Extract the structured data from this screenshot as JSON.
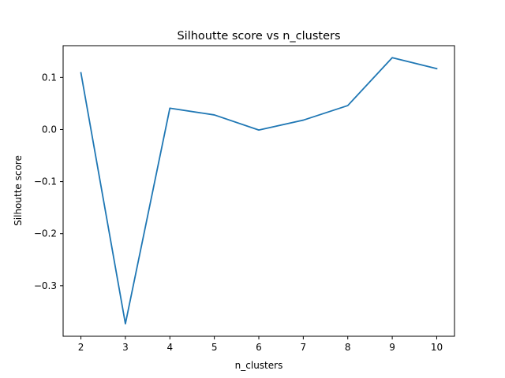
{
  "chart_data": {
    "type": "line",
    "title": "Silhoutte score vs n_clusters",
    "xlabel": "n_clusters",
    "ylabel": "Silhoutte score",
    "x": [
      2,
      3,
      4,
      5,
      6,
      7,
      8,
      9,
      10
    ],
    "series": [
      {
        "values": [
          0.109,
          -0.373,
          0.041,
          0.028,
          -0.001,
          0.018,
          0.046,
          0.138,
          0.117
        ],
        "color": "#1f77b4"
      }
    ],
    "xlim": [
      1.6,
      10.4
    ],
    "ylim": [
      -0.397,
      0.161
    ],
    "xticks": [
      2,
      3,
      4,
      5,
      6,
      7,
      8,
      9,
      10
    ],
    "yticks": [
      0.1,
      0.0,
      -0.1,
      -0.2,
      -0.3
    ],
    "ytick_labels": [
      "0.1",
      "0.0",
      "−0.1",
      "−0.2",
      "−0.3"
    ],
    "grid": false,
    "legend": "none"
  }
}
